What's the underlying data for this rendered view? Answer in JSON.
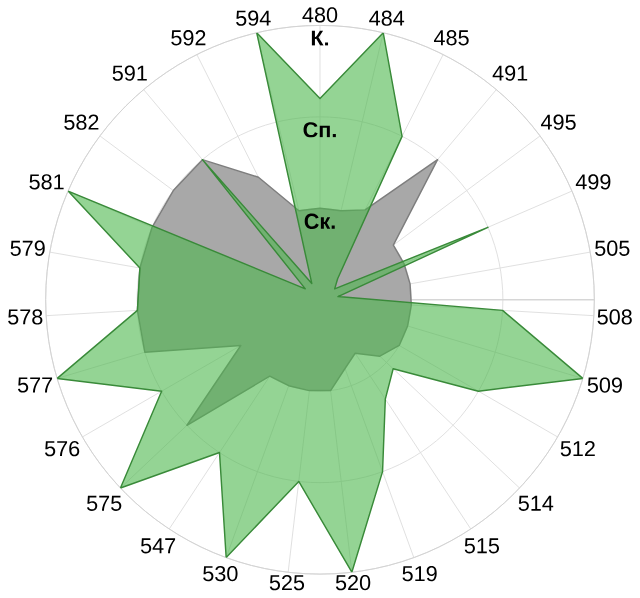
{
  "chart_data": {
    "type": "radar",
    "categories": [
      "480",
      "484",
      "485",
      "491",
      "495",
      "499",
      "505",
      "508",
      "509",
      "512",
      "514",
      "515",
      "519",
      "520",
      "525",
      "530",
      "547",
      "575",
      "576",
      "577",
      "578",
      "579",
      "581",
      "582",
      "591",
      "592",
      "594"
    ],
    "series": [
      {
        "color": "#a8a8a8",
        "values": [
          1,
          1,
          1.1,
          2,
          1,
          1,
          1,
          1,
          1,
          1,
          0.9,
          0.7,
          0.8,
          1,
          1,
          1,
          1,
          2,
          1,
          2,
          2,
          2,
          2,
          2,
          2,
          1.5,
          1
        ]
      },
      {
        "color": "#4cb84c",
        "values": [
          2.2,
          3,
          2,
          0.3,
          0.2,
          2,
          0.2,
          2,
          3,
          2,
          1.1,
          1.3,
          2,
          3,
          2,
          3,
          2,
          3,
          2,
          3,
          2,
          2,
          3,
          0.2,
          2,
          0.2,
          3
        ]
      }
    ],
    "ylim": [
      0,
      3
    ],
    "yticks": [
      {
        "value": 1,
        "label": "Ск."
      },
      {
        "value": 2,
        "label": "Сп."
      },
      {
        "value": 3,
        "label": "К."
      }
    ],
    "grid": true
  }
}
